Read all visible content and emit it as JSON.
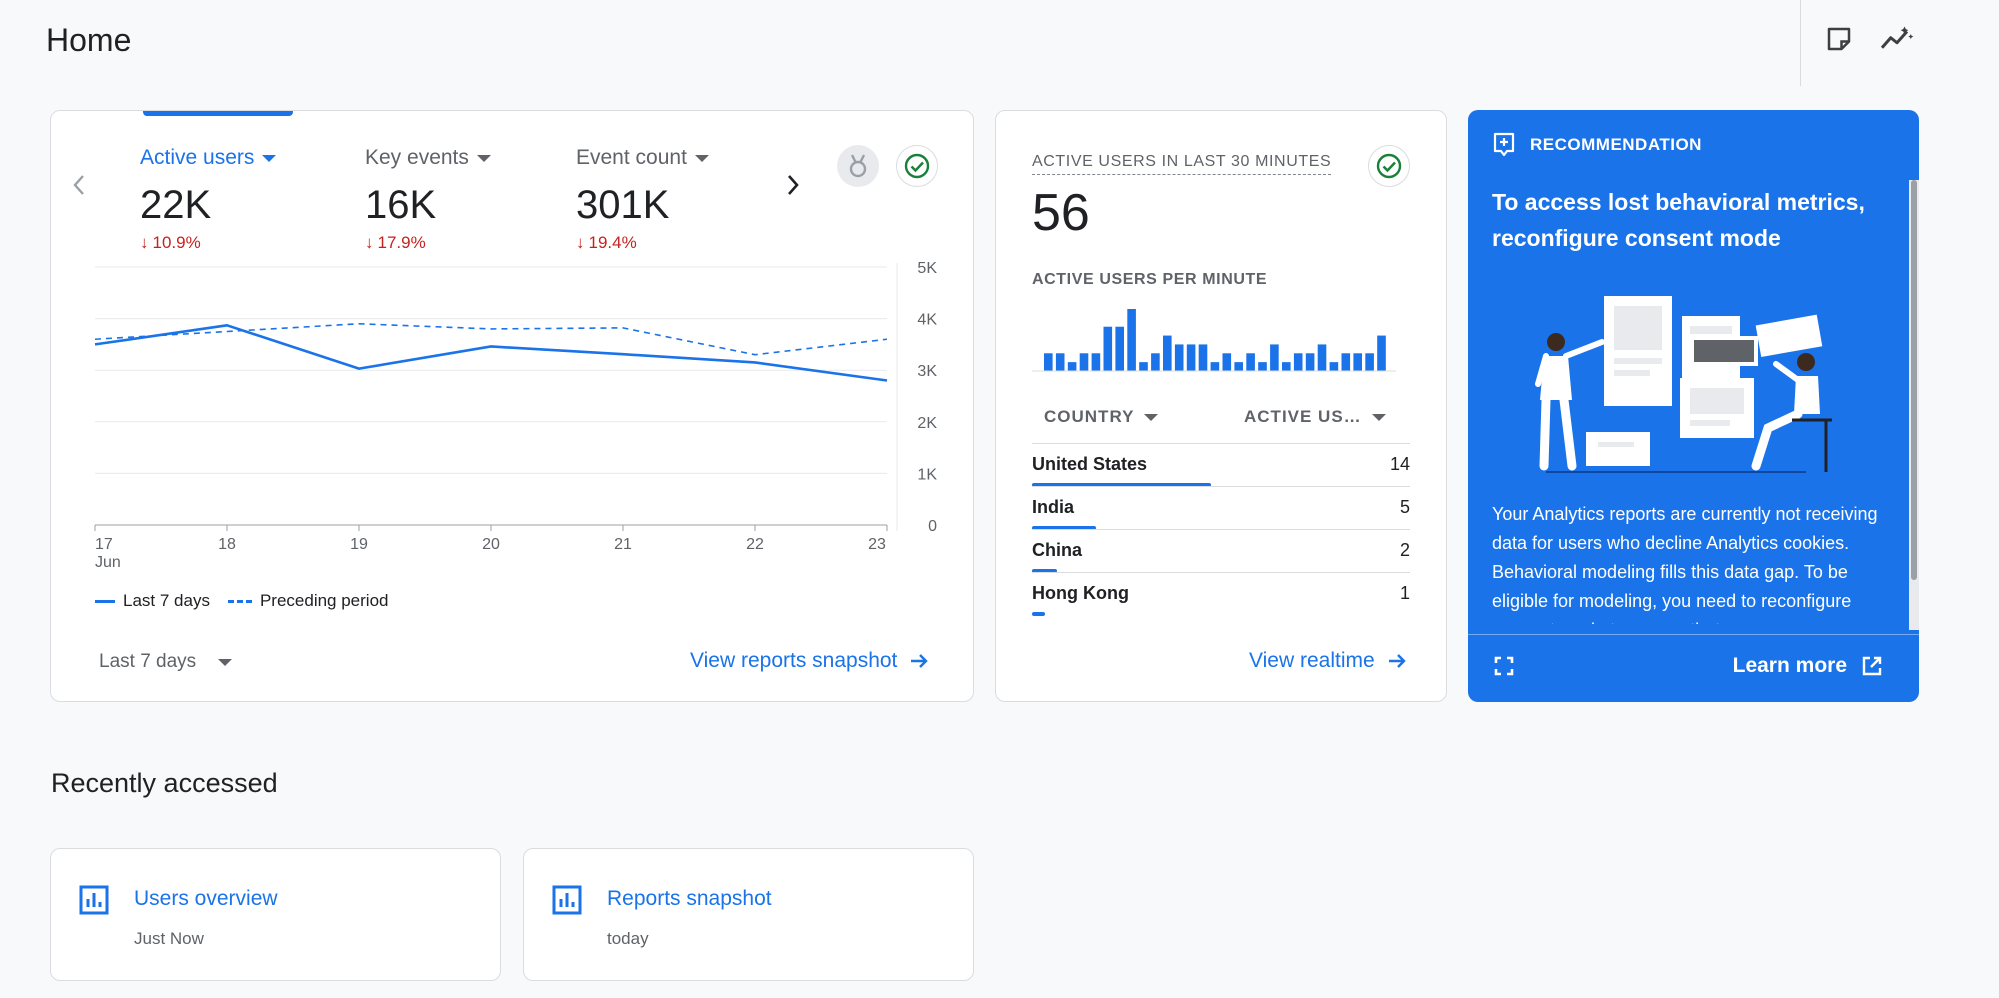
{
  "header": {
    "title": "Home",
    "icons": [
      "sticky-note-icon",
      "insights-icon"
    ]
  },
  "summary": {
    "metrics": [
      {
        "label": "Active users",
        "value": "22K",
        "change": "10.9%",
        "direction": "down",
        "active": true
      },
      {
        "label": "Key events",
        "value": "16K",
        "change": "17.9%",
        "direction": "down",
        "active": false
      },
      {
        "label": "Event count",
        "value": "301K",
        "change": "19.4%",
        "direction": "down",
        "active": false
      }
    ],
    "date_range": "Last 7 days",
    "link": "View reports snapshot",
    "legend": {
      "current": "Last 7 days",
      "previous": "Preceding period"
    }
  },
  "chart_data": {
    "type": "line",
    "x": [
      "17",
      "18",
      "19",
      "20",
      "21",
      "22",
      "23"
    ],
    "x_sublabel": "Jun",
    "yticks": [
      "0",
      "1K",
      "2K",
      "3K",
      "4K",
      "5K"
    ],
    "ylim": [
      0,
      5000
    ],
    "series": [
      {
        "name": "Last 7 days",
        "style": "solid",
        "values": [
          3500,
          3870,
          3030,
          3460,
          3310,
          3150,
          2800
        ]
      },
      {
        "name": "Preceding period",
        "style": "dashed",
        "values": [
          3600,
          3750,
          3900,
          3800,
          3820,
          3300,
          3600
        ]
      }
    ],
    "grid": true,
    "legend_position": "bottom-left",
    "color": "#1a73e8"
  },
  "realtime": {
    "title": "ACTIVE USERS IN LAST 30 MINUTES",
    "value": "56",
    "subtitle": "ACTIVE USERS PER MINUTE",
    "bars": [
      2,
      2,
      1,
      2,
      2,
      5,
      5,
      7,
      1,
      2,
      4,
      3,
      3,
      3,
      1,
      2,
      1,
      2,
      1,
      3,
      1,
      2,
      2,
      3,
      1,
      2,
      2,
      2,
      4
    ],
    "columns": {
      "country": "COUNTRY",
      "users": "ACTIVE US…"
    },
    "rows": [
      {
        "country": "United States",
        "count": "14",
        "share": 0.5
      },
      {
        "country": "India",
        "count": "5",
        "share": 0.18
      },
      {
        "country": "China",
        "count": "2",
        "share": 0.07
      },
      {
        "country": "Hong Kong",
        "count": "1",
        "share": 0.035
      }
    ],
    "link": "View realtime"
  },
  "recommendation": {
    "label": "RECOMMENDATION",
    "title": "To access lost behavioral metrics, reconfigure consent mode",
    "body": "Your Analytics reports are currently not receiving data for users who decline Analytics cookies. Behavioral modeling fills this data gap. To be eligible for modeling, you need to reconfigure consent mode to ensure that",
    "learn_more": "Learn more"
  },
  "recent": {
    "title": "Recently accessed",
    "items": [
      {
        "title": "Users overview",
        "subtitle": "Just Now"
      },
      {
        "title": "Reports snapshot",
        "subtitle": "today"
      }
    ]
  }
}
